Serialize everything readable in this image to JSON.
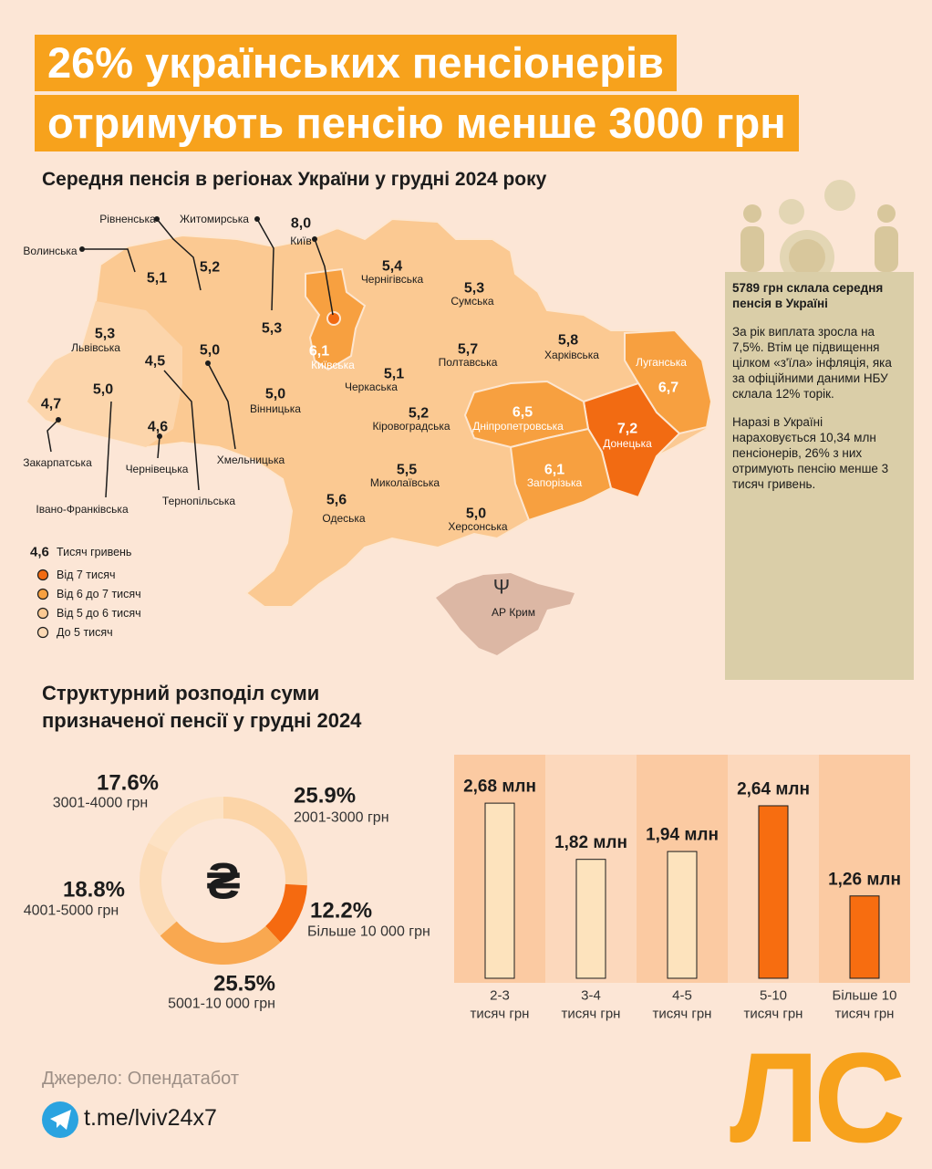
{
  "header": {
    "title_lines": [
      "26% українських пенсіонерів",
      "отримують пенсію менше 3000 грн"
    ]
  },
  "map": {
    "title": "Середня пенсія в регіонах України у грудні 2024 року",
    "regions": [
      {
        "name": "Волинська",
        "value": "5,1"
      },
      {
        "name": "Рівненська",
        "value": "5,2"
      },
      {
        "name": "Житомирська",
        "value": "5,3"
      },
      {
        "name": "Київ",
        "value": "8,0"
      },
      {
        "name": "Київська",
        "value": "6,1"
      },
      {
        "name": "Чернігівська",
        "value": "5,4"
      },
      {
        "name": "Сумська",
        "value": "5,3"
      },
      {
        "name": "Львівська",
        "value": "5,3"
      },
      {
        "name": "Тернопільська",
        "value": "4,5"
      },
      {
        "name": "Хмельницька",
        "value": "5,0"
      },
      {
        "name": "Вінницька",
        "value": "5,0"
      },
      {
        "name": "Черкаська",
        "value": "5,1"
      },
      {
        "name": "Полтавська",
        "value": "5,7"
      },
      {
        "name": "Харківська",
        "value": "5,8"
      },
      {
        "name": "Луганська",
        "value": "6,7"
      },
      {
        "name": "Донецька",
        "value": "7,2"
      },
      {
        "name": "Дніпропетровська",
        "value": "6,5"
      },
      {
        "name": "Запорізька",
        "value": "6,1"
      },
      {
        "name": "Кіровоградська",
        "value": "5,2"
      },
      {
        "name": "Миколаївська",
        "value": "5,5"
      },
      {
        "name": "Херсонська",
        "value": "5,0"
      },
      {
        "name": "Одеська",
        "value": "5,6"
      },
      {
        "name": "Закарпатська",
        "value": "4,7"
      },
      {
        "name": "Івано-Франківська",
        "value": "5,0"
      },
      {
        "name": "Чернівецька",
        "value": "4,6"
      }
    ],
    "crimea": "АР Крим",
    "legend": {
      "example_value": "4,6",
      "unit": "Тисяч гривень",
      "items": [
        {
          "label": "Від 7 тисяч",
          "color": "#f26b12"
        },
        {
          "label": "Від 6 до 7 тисяч",
          "color": "#f7a040"
        },
        {
          "label": "Від 5 до 6 тисяч",
          "color": "#fbc992"
        },
        {
          "label": "До 5 тисяч",
          "color": "#fcd9b4"
        }
      ]
    }
  },
  "info": {
    "highlight": "5789 грн склала середня пенсія в Україні",
    "paragraphs": [
      "За рік виплата зросла на 7,5%. Втім це підвищення цілком «з'їла» інфляція, яка за офіційними даними НБУ склала 12% торік.",
      "Наразі в Україні нараховується 10,34 млн пенсіонерів, 26% з них отримують пенсію менше 3 тисяч гривень."
    ]
  },
  "chart_data": [
    {
      "type": "donut",
      "title": "Структурний розподіл суми призначеної пенсії у грудні 2024",
      "categories": [
        "2001-3000 грн",
        "Більше 10 000 грн",
        "5001-10 000 грн",
        "4001-5000 грн",
        "3001-4000 грн"
      ],
      "values": [
        25.9,
        12.2,
        25.5,
        18.8,
        17.6
      ],
      "value_labels": [
        "25.9%",
        "12.2%",
        "25.5%",
        "18.8%",
        "17.6%"
      ],
      "colors": [
        "#fcd5a8",
        "#f56a10",
        "#f9a850",
        "#fcdcb8",
        "#fde2c4"
      ]
    },
    {
      "type": "bar",
      "categories": [
        [
          "2-3",
          "тисяч грн"
        ],
        [
          "3-4",
          "тисяч грн"
        ],
        [
          "4-5",
          "тисяч грн"
        ],
        [
          "5-10",
          "тисяч грн"
        ],
        [
          "Більше 10",
          "тисяч грн"
        ]
      ],
      "values": [
        2.68,
        1.82,
        1.94,
        2.64,
        1.26
      ],
      "value_labels": [
        "2,68 млн",
        "1,82 млн",
        "1,94 млн",
        "2,64 млн",
        "1,26 млн"
      ],
      "colors": [
        "#fde3bd",
        "#fde3bd",
        "#fde3bd",
        "#f76d10",
        "#f76d10"
      ]
    }
  ],
  "footer": {
    "source": "Джерело: Опендатабот",
    "link": "t.me/lviv24x7",
    "logo": "ЛС"
  }
}
